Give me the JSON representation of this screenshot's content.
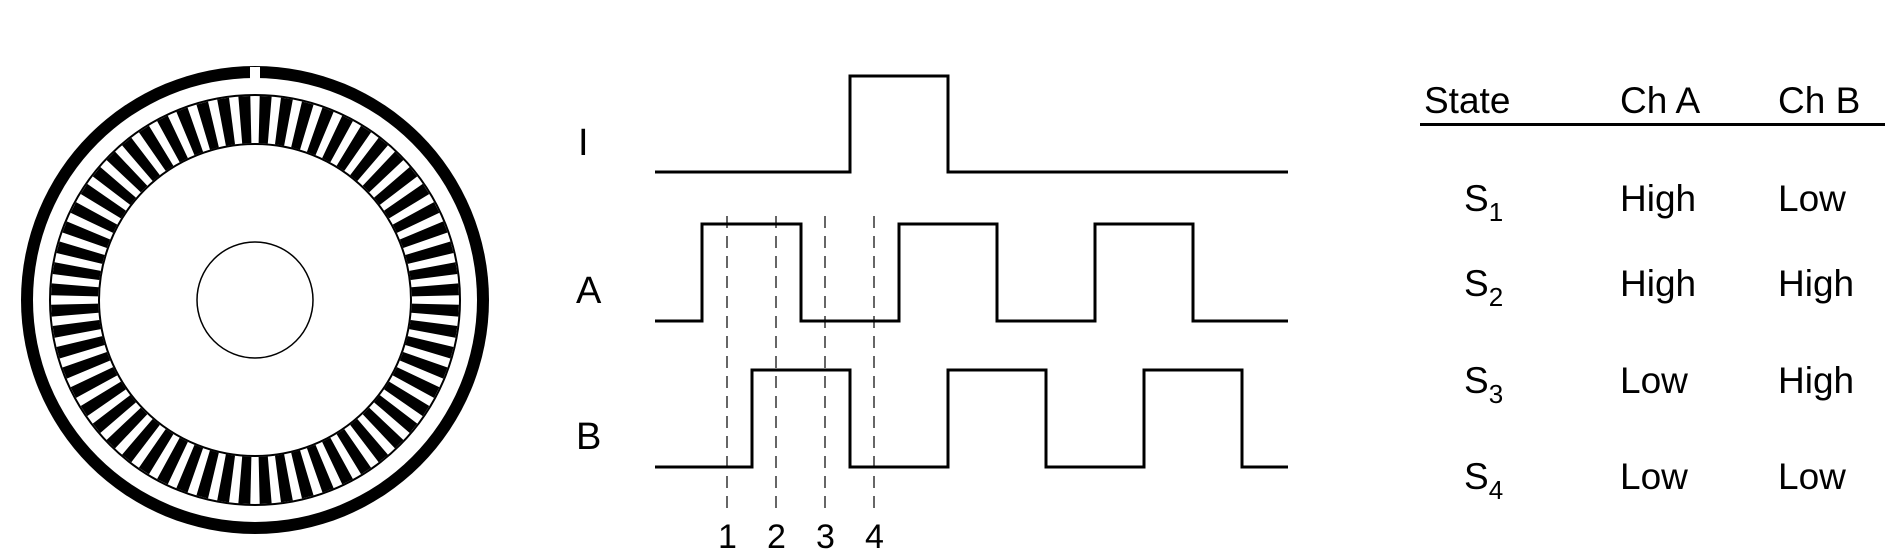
{
  "colors": {
    "ink": "#000000",
    "paper": "#ffffff"
  },
  "encoder_disk": {
    "slot_count": 60,
    "index_mark_count": 1
  },
  "waveforms": {
    "signals": [
      {
        "label": "I"
      },
      {
        "label": "A"
      },
      {
        "label": "B"
      }
    ],
    "step_labels": [
      "1",
      "2",
      "3",
      "4"
    ]
  },
  "state_table": {
    "headers": [
      "State",
      "Ch A",
      "Ch B"
    ],
    "rows": [
      {
        "state": "S",
        "sub": "1",
        "ch_a": "High",
        "ch_b": "Low"
      },
      {
        "state": "S",
        "sub": "2",
        "ch_a": "High",
        "ch_b": "High"
      },
      {
        "state": "S",
        "sub": "3",
        "ch_a": "Low",
        "ch_b": "High"
      },
      {
        "state": "S",
        "sub": "4",
        "ch_a": "Low",
        "ch_b": "Low"
      }
    ]
  }
}
